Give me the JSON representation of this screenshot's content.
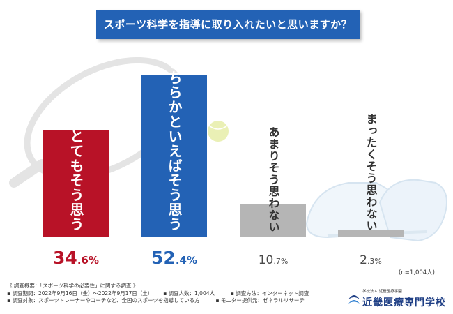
{
  "colors": {
    "title_bg": "#2362b5",
    "bar_red": "#b81227",
    "bar_blue": "#2362b5",
    "bar_gray": "#b5b5b5",
    "value_red": "#b81227",
    "value_blue": "#2362b5",
    "value_gray": "#4a4a4a"
  },
  "chart_data": {
    "type": "bar",
    "title": "スポーツ科学を指導に取り入れたいと思いますか？",
    "categories": [
      "とてもそう思う",
      "どちらかといえばそう思う",
      "あまりそう思わない",
      "まったくそう思わない"
    ],
    "values": [
      34.6,
      52.4,
      10.7,
      2.3
    ],
    "value_labels": [
      {
        "int": "34",
        "dec": ".6",
        "pct": "%"
      },
      {
        "int": "52",
        "dec": ".4",
        "pct": "%"
      },
      {
        "int": "10",
        "dec": ".7",
        "pct": "%"
      },
      {
        "int": "2",
        "dec": ".3",
        "pct": "%"
      }
    ],
    "unit": "%",
    "sample_size": "(n=1,004人)",
    "grid": false,
    "legend": "none"
  },
  "footer": {
    "overview": "《 調査概要：「スポーツ科学の必要性」に関する調査 》",
    "period": "▪ 調査期間：2022年9月16日（金）～2022年9月17日（土）",
    "respondents": "▪ 調査人数：1,004人",
    "method": "▪ 調査方法：インターネット調査",
    "target": "▪ 調査対象：スポーツトレーナーやコーチなど、全国のスポーツを指導している方",
    "monitor": "▪ モニター提供元：ゼネラルリサーチ"
  },
  "logo": {
    "sub": "学校法人 近畿医療学園",
    "name": "近畿医療専門学校"
  }
}
